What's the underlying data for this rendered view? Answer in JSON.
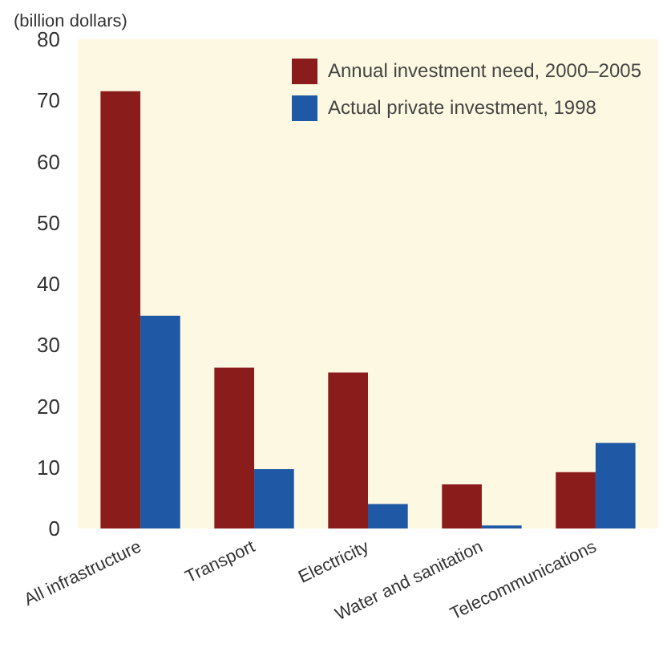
{
  "chart_data": {
    "type": "bar",
    "ylabel": "(billion dollars)",
    "categories": [
      "All infrastructure",
      "Transport",
      "Electricity",
      "Water and sanitation",
      "Telecommunications"
    ],
    "series": [
      {
        "name": "Annual investment need, 2000–2005",
        "color": "#8b1c1c",
        "values": [
          71.5,
          26.3,
          25.5,
          7.2,
          9.2
        ]
      },
      {
        "name": "Actual private investment, 1998",
        "color": "#1f58a4",
        "values": [
          34.8,
          9.7,
          4,
          0.5,
          14
        ]
      }
    ],
    "ylim": [
      0,
      80
    ],
    "yticks": [
      0,
      10,
      20,
      30,
      40,
      50,
      60,
      70,
      80
    ],
    "grid": false,
    "legend": "top right"
  }
}
